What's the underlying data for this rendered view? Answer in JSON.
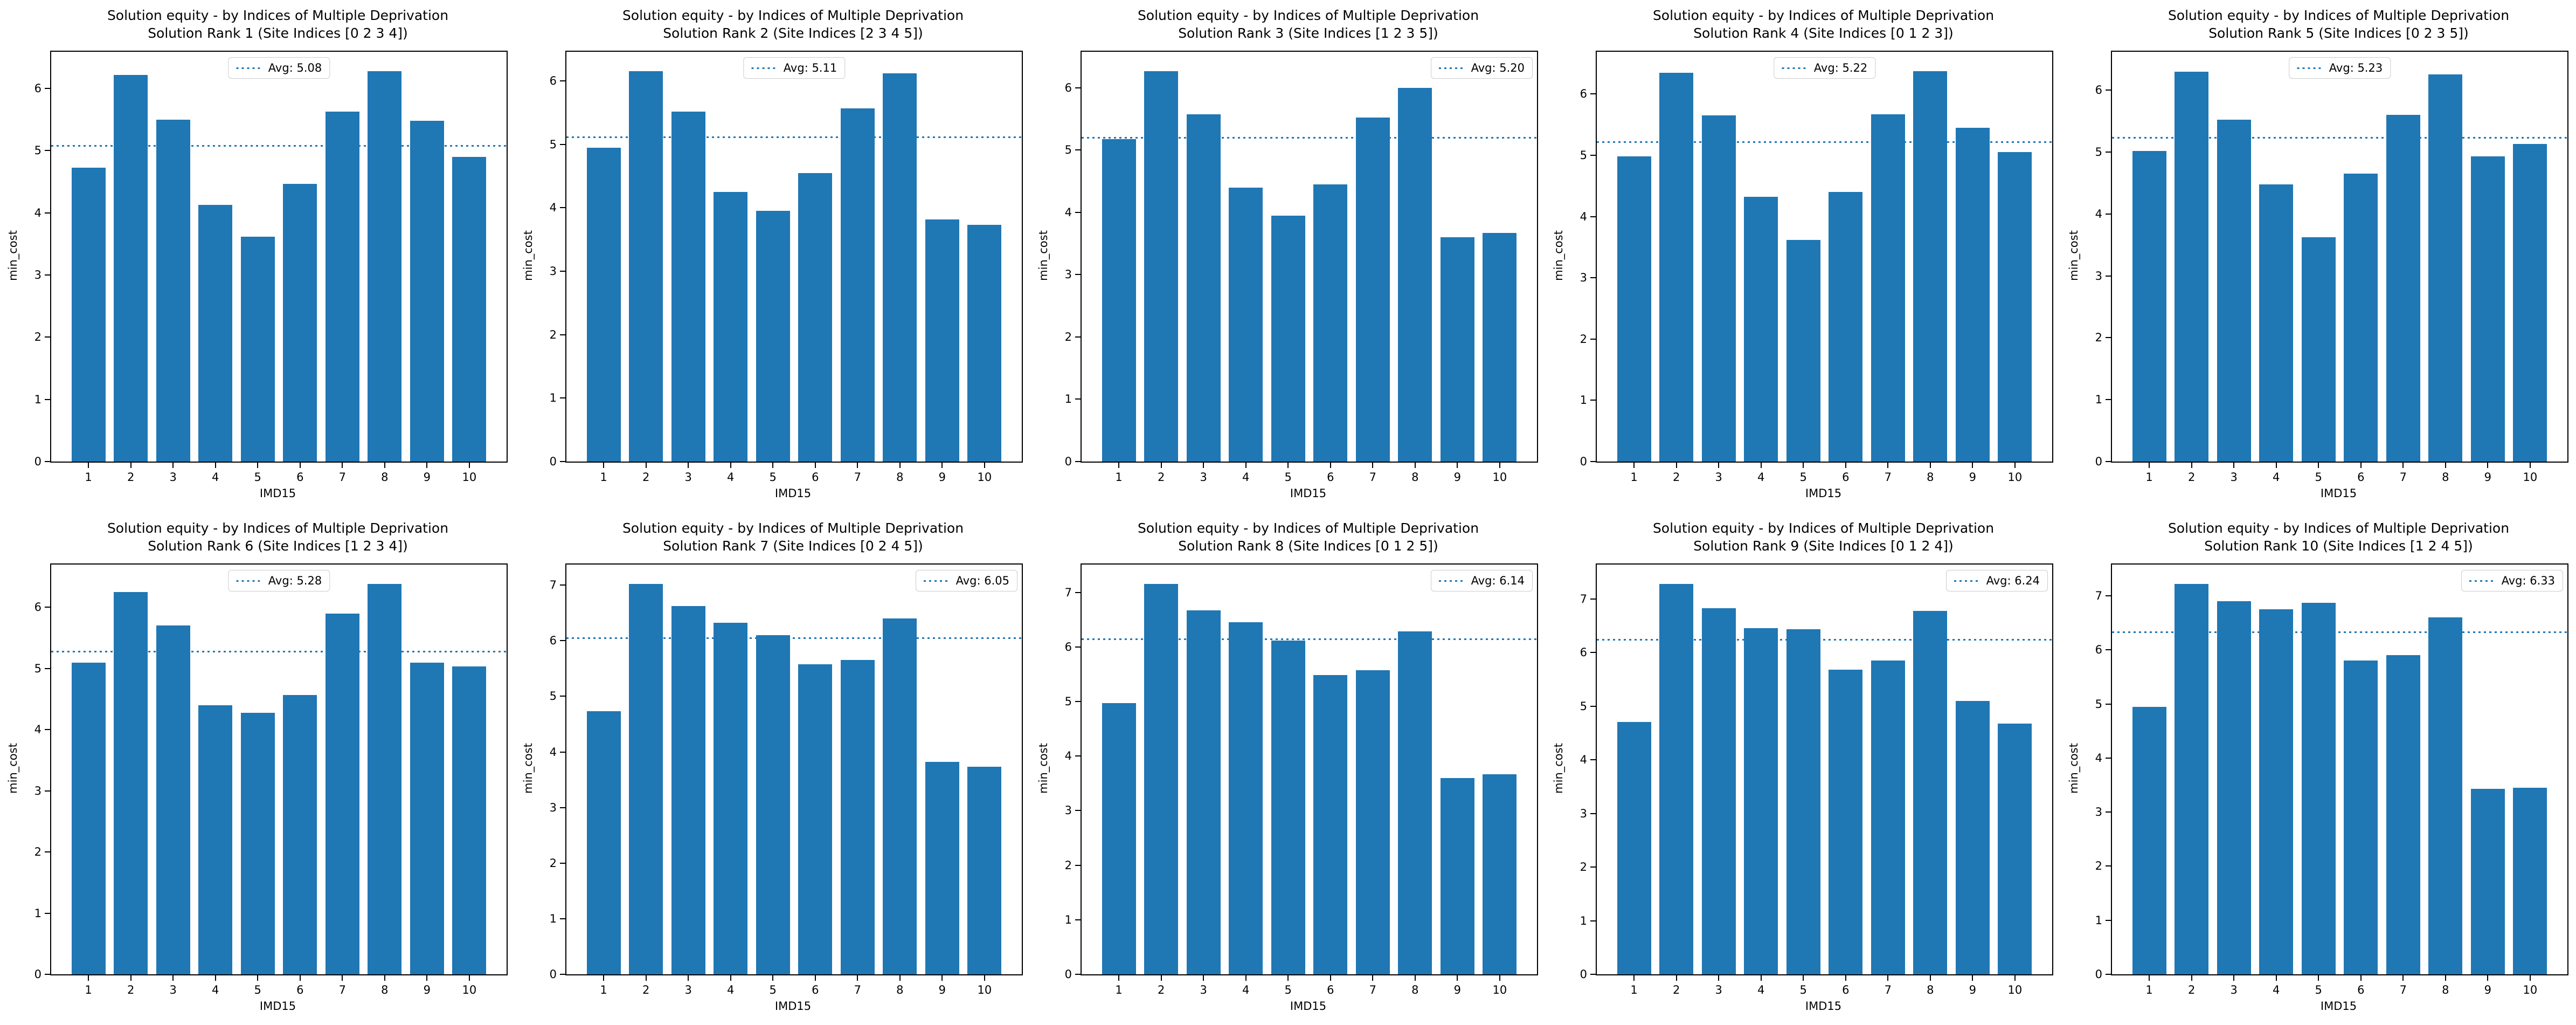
{
  "figure": {
    "background": "#ffffff"
  },
  "colors": {
    "bar": "#1f77b4",
    "avg_line": "#1f77b4",
    "text": "#000000",
    "legend_border": "#cccccc"
  },
  "shared": {
    "title_line1": "Solution equity - by Indices of Multiple Deprivation",
    "xlabel": "IMD15",
    "ylabel": "min_cost"
  },
  "chart_data": [
    {
      "type": "bar",
      "title_line1": "Solution equity - by Indices of Multiple Deprivation",
      "title_line2": "Solution Rank 1 (Site Indices [0 2 3 4])",
      "xlabel": "IMD15",
      "ylabel": "min_cost",
      "categories": [
        "1",
        "2",
        "3",
        "4",
        "5",
        "6",
        "7",
        "8",
        "9",
        "10"
      ],
      "values": [
        4.73,
        6.22,
        5.5,
        4.13,
        3.62,
        4.47,
        5.63,
        6.28,
        5.48,
        4.9
      ],
      "avg_label": "Avg: 5.08",
      "avg_value": 5.08,
      "legend_position": "upper center",
      "ylim": [
        0,
        6.59
      ],
      "yticks": [
        0,
        1,
        2,
        3,
        4,
        5,
        6
      ],
      "grid": false
    },
    {
      "type": "bar",
      "title_line1": "Solution equity - by Indices of Multiple Deprivation",
      "title_line2": "Solution Rank 2 (Site Indices [2 3 4 5])",
      "xlabel": "IMD15",
      "ylabel": "min_cost",
      "categories": [
        "1",
        "2",
        "3",
        "4",
        "5",
        "6",
        "7",
        "8",
        "9",
        "10"
      ],
      "values": [
        4.95,
        6.15,
        5.52,
        4.25,
        3.95,
        4.55,
        5.57,
        6.12,
        3.82,
        3.73
      ],
      "avg_label": "Avg: 5.11",
      "avg_value": 5.11,
      "legend_position": "upper center",
      "ylim": [
        0,
        6.46
      ],
      "yticks": [
        0,
        1,
        2,
        3,
        4,
        5,
        6
      ],
      "grid": false
    },
    {
      "type": "bar",
      "title_line1": "Solution equity - by Indices of Multiple Deprivation",
      "title_line2": "Solution Rank 3 (Site Indices [1 2 3 5])",
      "xlabel": "IMD15",
      "ylabel": "min_cost",
      "categories": [
        "1",
        "2",
        "3",
        "4",
        "5",
        "6",
        "7",
        "8",
        "9",
        "10"
      ],
      "values": [
        5.18,
        6.27,
        5.58,
        4.4,
        3.95,
        4.45,
        5.52,
        6.0,
        3.6,
        3.67
      ],
      "avg_label": "Avg: 5.20",
      "avg_value": 5.2,
      "legend_position": "upper right",
      "ylim": [
        0,
        6.58
      ],
      "yticks": [
        0,
        1,
        2,
        3,
        4,
        5,
        6
      ],
      "grid": false
    },
    {
      "type": "bar",
      "title_line1": "Solution equity - by Indices of Multiple Deprivation",
      "title_line2": "Solution Rank 4 (Site Indices [0 1 2 3])",
      "xlabel": "IMD15",
      "ylabel": "min_cost",
      "categories": [
        "1",
        "2",
        "3",
        "4",
        "5",
        "6",
        "7",
        "8",
        "9",
        "10"
      ],
      "values": [
        4.98,
        6.35,
        5.65,
        4.32,
        3.62,
        4.4,
        5.67,
        6.37,
        5.45,
        5.05
      ],
      "avg_label": "Avg: 5.22",
      "avg_value": 5.22,
      "legend_position": "upper center",
      "ylim": [
        0,
        6.69
      ],
      "yticks": [
        0,
        1,
        2,
        3,
        4,
        5,
        6
      ],
      "grid": false
    },
    {
      "type": "bar",
      "title_line1": "Solution equity - by Indices of Multiple Deprivation",
      "title_line2": "Solution Rank 5 (Site Indices [0 2 3 5])",
      "xlabel": "IMD15",
      "ylabel": "min_cost",
      "categories": [
        "1",
        "2",
        "3",
        "4",
        "5",
        "6",
        "7",
        "8",
        "9",
        "10"
      ],
      "values": [
        5.02,
        6.3,
        5.52,
        4.48,
        3.62,
        4.65,
        5.6,
        6.25,
        4.93,
        5.13
      ],
      "avg_label": "Avg: 5.23",
      "avg_value": 5.23,
      "legend_position": "upper center",
      "ylim": [
        0,
        6.62
      ],
      "yticks": [
        0,
        1,
        2,
        3,
        4,
        5,
        6
      ],
      "grid": false
    },
    {
      "type": "bar",
      "title_line1": "Solution equity - by Indices of Multiple Deprivation",
      "title_line2": "Solution Rank 6 (Site Indices [1 2 3 4])",
      "xlabel": "IMD15",
      "ylabel": "min_cost",
      "categories": [
        "1",
        "2",
        "3",
        "4",
        "5",
        "6",
        "7",
        "8",
        "9",
        "10"
      ],
      "values": [
        5.1,
        6.25,
        5.7,
        4.4,
        4.28,
        4.57,
        5.9,
        6.38,
        5.1,
        5.03
      ],
      "avg_label": "Avg: 5.28",
      "avg_value": 5.28,
      "legend_position": "upper center",
      "ylim": [
        0,
        6.7
      ],
      "yticks": [
        0,
        1,
        2,
        3,
        4,
        5,
        6
      ],
      "grid": false
    },
    {
      "type": "bar",
      "title_line1": "Solution equity - by Indices of Multiple Deprivation",
      "title_line2": "Solution Rank 7 (Site Indices [0 2 4 5])",
      "xlabel": "IMD15",
      "ylabel": "min_cost",
      "categories": [
        "1",
        "2",
        "3",
        "4",
        "5",
        "6",
        "7",
        "8",
        "9",
        "10"
      ],
      "values": [
        4.73,
        7.02,
        6.62,
        6.32,
        6.1,
        5.58,
        5.65,
        6.4,
        3.82,
        3.73
      ],
      "avg_label": "Avg: 6.05",
      "avg_value": 6.05,
      "legend_position": "upper right",
      "ylim": [
        0,
        7.37
      ],
      "yticks": [
        0,
        1,
        2,
        3,
        4,
        5,
        6,
        7
      ],
      "grid": false
    },
    {
      "type": "bar",
      "title_line1": "Solution equity - by Indices of Multiple Deprivation",
      "title_line2": "Solution Rank 8 (Site Indices [0 1 2 5])",
      "xlabel": "IMD15",
      "ylabel": "min_cost",
      "categories": [
        "1",
        "2",
        "3",
        "4",
        "5",
        "6",
        "7",
        "8",
        "9",
        "10"
      ],
      "values": [
        4.97,
        7.15,
        6.67,
        6.45,
        6.12,
        5.48,
        5.57,
        6.28,
        3.6,
        3.67
      ],
      "avg_label": "Avg: 6.14",
      "avg_value": 6.14,
      "legend_position": "upper right",
      "ylim": [
        0,
        7.51
      ],
      "yticks": [
        0,
        1,
        2,
        3,
        4,
        5,
        6,
        7
      ],
      "grid": false
    },
    {
      "type": "bar",
      "title_line1": "Solution equity - by Indices of Multiple Deprivation",
      "title_line2": "Solution Rank 9 (Site Indices [0 1 2 4])",
      "xlabel": "IMD15",
      "ylabel": "min_cost",
      "categories": [
        "1",
        "2",
        "3",
        "4",
        "5",
        "6",
        "7",
        "8",
        "9",
        "10"
      ],
      "values": [
        4.7,
        7.28,
        6.83,
        6.45,
        6.43,
        5.68,
        5.85,
        6.78,
        5.1,
        4.67
      ],
      "avg_label": "Avg: 6.24",
      "avg_value": 6.24,
      "legend_position": "upper right",
      "ylim": [
        0,
        7.64
      ],
      "yticks": [
        0,
        1,
        2,
        3,
        4,
        5,
        6,
        7
      ],
      "grid": false
    },
    {
      "type": "bar",
      "title_line1": "Solution equity - by Indices of Multiple Deprivation",
      "title_line2": "Solution Rank 10 (Site Indices [1 2 4 5])",
      "xlabel": "IMD15",
      "ylabel": "min_cost",
      "categories": [
        "1",
        "2",
        "3",
        "4",
        "5",
        "6",
        "7",
        "8",
        "9",
        "10"
      ],
      "values": [
        4.95,
        7.22,
        6.9,
        6.75,
        6.87,
        5.8,
        5.9,
        6.6,
        3.43,
        3.45
      ],
      "avg_label": "Avg: 6.33",
      "avg_value": 6.33,
      "legend_position": "upper right",
      "ylim": [
        0,
        7.58
      ],
      "yticks": [
        0,
        1,
        2,
        3,
        4,
        5,
        6,
        7
      ],
      "grid": false
    }
  ]
}
